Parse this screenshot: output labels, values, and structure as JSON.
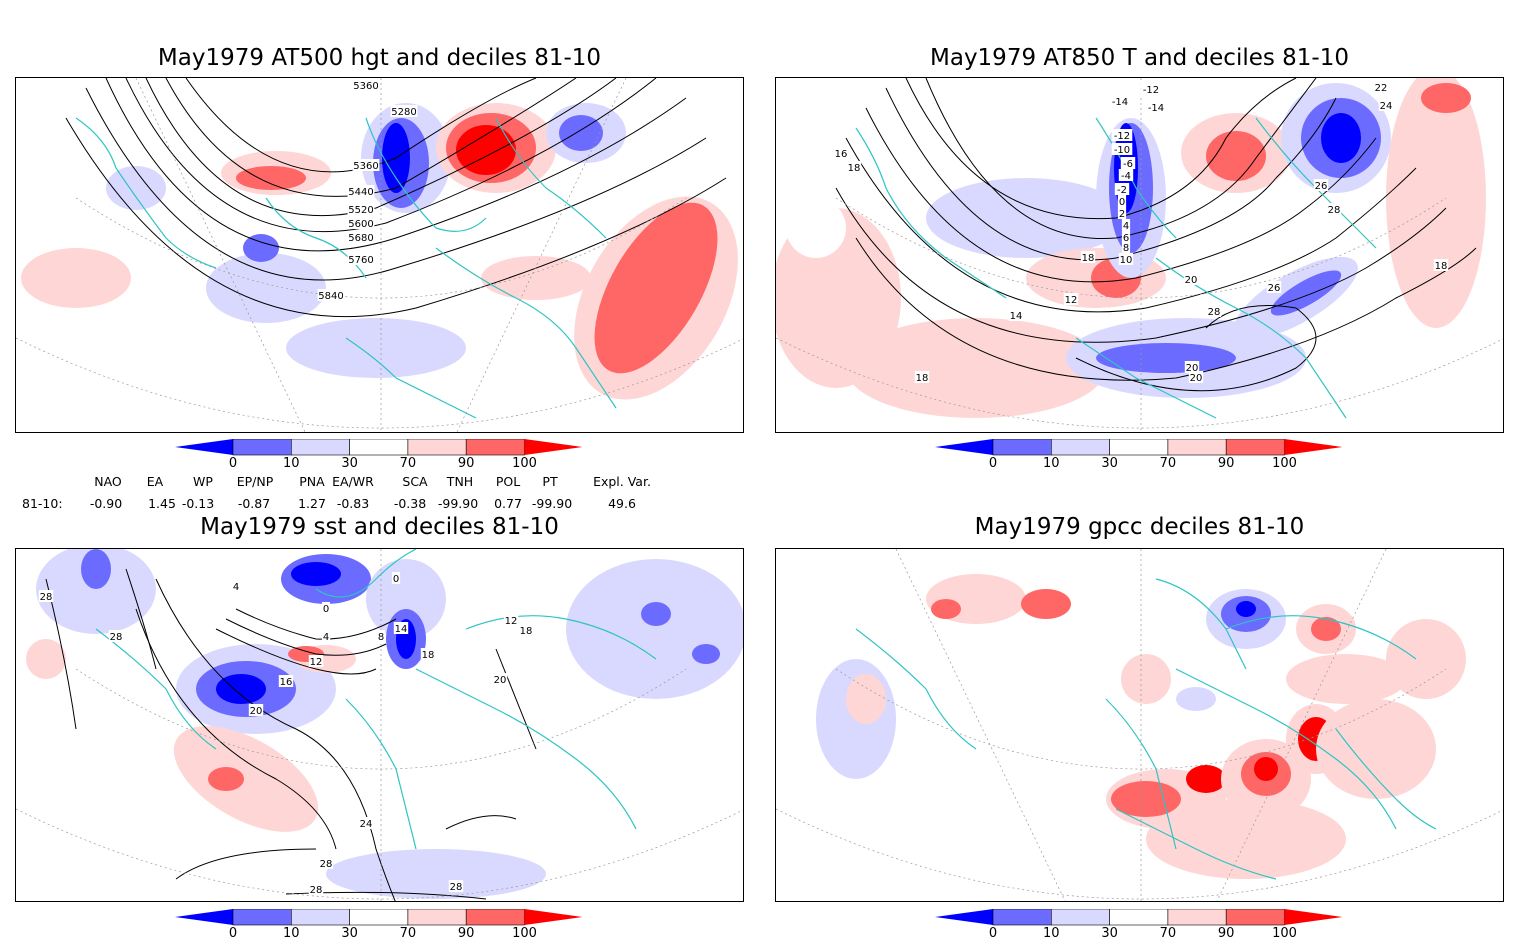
{
  "panels": [
    {
      "id": "p1",
      "title": "May1979 AT500 hgt and deciles 81-10",
      "contour_labels": [
        "5360",
        "5280",
        "5360",
        "5440",
        "5520",
        "5600",
        "5680",
        "5760",
        "5840"
      ]
    },
    {
      "id": "p2",
      "title": "May1979 AT850 T and deciles 81-10",
      "contour_labels": [
        "-12",
        "-14",
        "-14",
        "-12",
        "-10",
        "-6",
        "-4",
        "-2",
        "0",
        "2",
        "4",
        "6",
        "8",
        "10",
        "12",
        "14",
        "16",
        "18",
        "18",
        "18",
        "20",
        "20",
        "20",
        "22",
        "24",
        "26",
        "26",
        "28",
        "28",
        "18"
      ]
    },
    {
      "id": "p3",
      "title": "May1979 sst and deciles 81-10",
      "contour_labels": [
        "28",
        "28",
        "4",
        "0",
        "4",
        "8",
        "12",
        "16",
        "20",
        "14",
        "18",
        "0",
        "12",
        "18",
        "20",
        "24",
        "28",
        "28",
        "28"
      ]
    },
    {
      "id": "p4",
      "title": "May1979 gpcc deciles 81-10",
      "contour_labels": []
    }
  ],
  "colorbar": {
    "labels": [
      "0",
      "10",
      "30",
      "70",
      "90",
      "100"
    ],
    "colors": [
      "#0000ff",
      "#6b6bff",
      "#d9d9ff",
      "#ffffff",
      "#ffd6d6",
      "#ff6666",
      "#ff0000"
    ]
  },
  "indices": {
    "headers": [
      "NAO",
      "EA",
      "WP",
      "EP/NP",
      "PNA",
      "EA/WR",
      "SCA",
      "TNH",
      "POL",
      "PT",
      "Expl. Var."
    ],
    "row_label": "81-10:",
    "values": [
      "-0.90",
      "1.45",
      "-0.13",
      "-0.87",
      "1.27",
      "-0.83",
      "-0.38",
      "-99.90",
      "0.77",
      "-99.90",
      "49.6"
    ]
  }
}
